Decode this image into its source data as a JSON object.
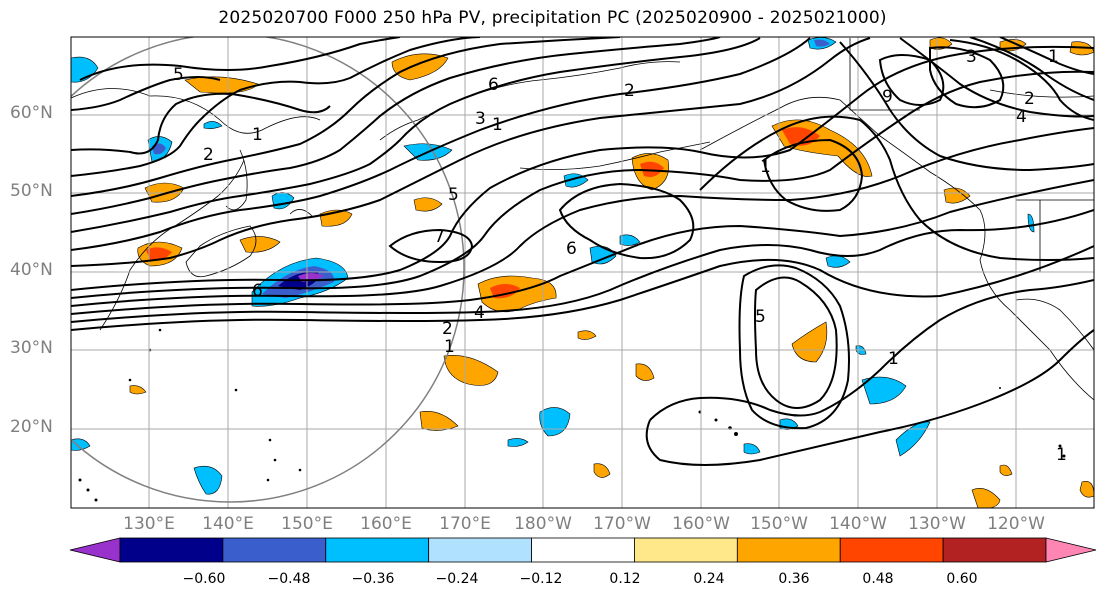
{
  "title": "2025020700 F000 250 hPa PV, precipitation PC (2025020900 - 2025021000)",
  "latitude_labels": [
    "60°N",
    "50°N",
    "40°N",
    "30°N",
    "20°N"
  ],
  "longitude_labels": [
    "130°E",
    "140°E",
    "150°E",
    "160°E",
    "170°E",
    "180°W",
    "170°W",
    "160°W",
    "150°W",
    "140°W",
    "130°W",
    "120°W"
  ],
  "colorbar": {
    "tick_labels": [
      "−0.60",
      "−0.48",
      "−0.36",
      "−0.24",
      "−0.12",
      "0.12",
      "0.24",
      "0.36",
      "0.48",
      "0.60"
    ],
    "colors": [
      "#9932cc",
      "#00008b",
      "#3a5fcd",
      "#00bfff",
      "#b0e2ff",
      "#ffffff",
      "#ffe88a",
      "#ffa500",
      "#ff4500",
      "#b22222",
      "#ff85b3"
    ]
  },
  "contour_labels": [
    "5",
    "6",
    "1",
    "3",
    "2",
    "1",
    "2",
    "5",
    "7",
    "6",
    "4",
    "2",
    "1",
    "5",
    "1",
    "6",
    "1",
    "9",
    "3",
    "1",
    "2",
    "4",
    "1"
  ],
  "colors": {
    "grid": "#a9a9a9",
    "contour": "#000000",
    "axis_text": "#7f7f7f",
    "circle": "#808080"
  }
}
